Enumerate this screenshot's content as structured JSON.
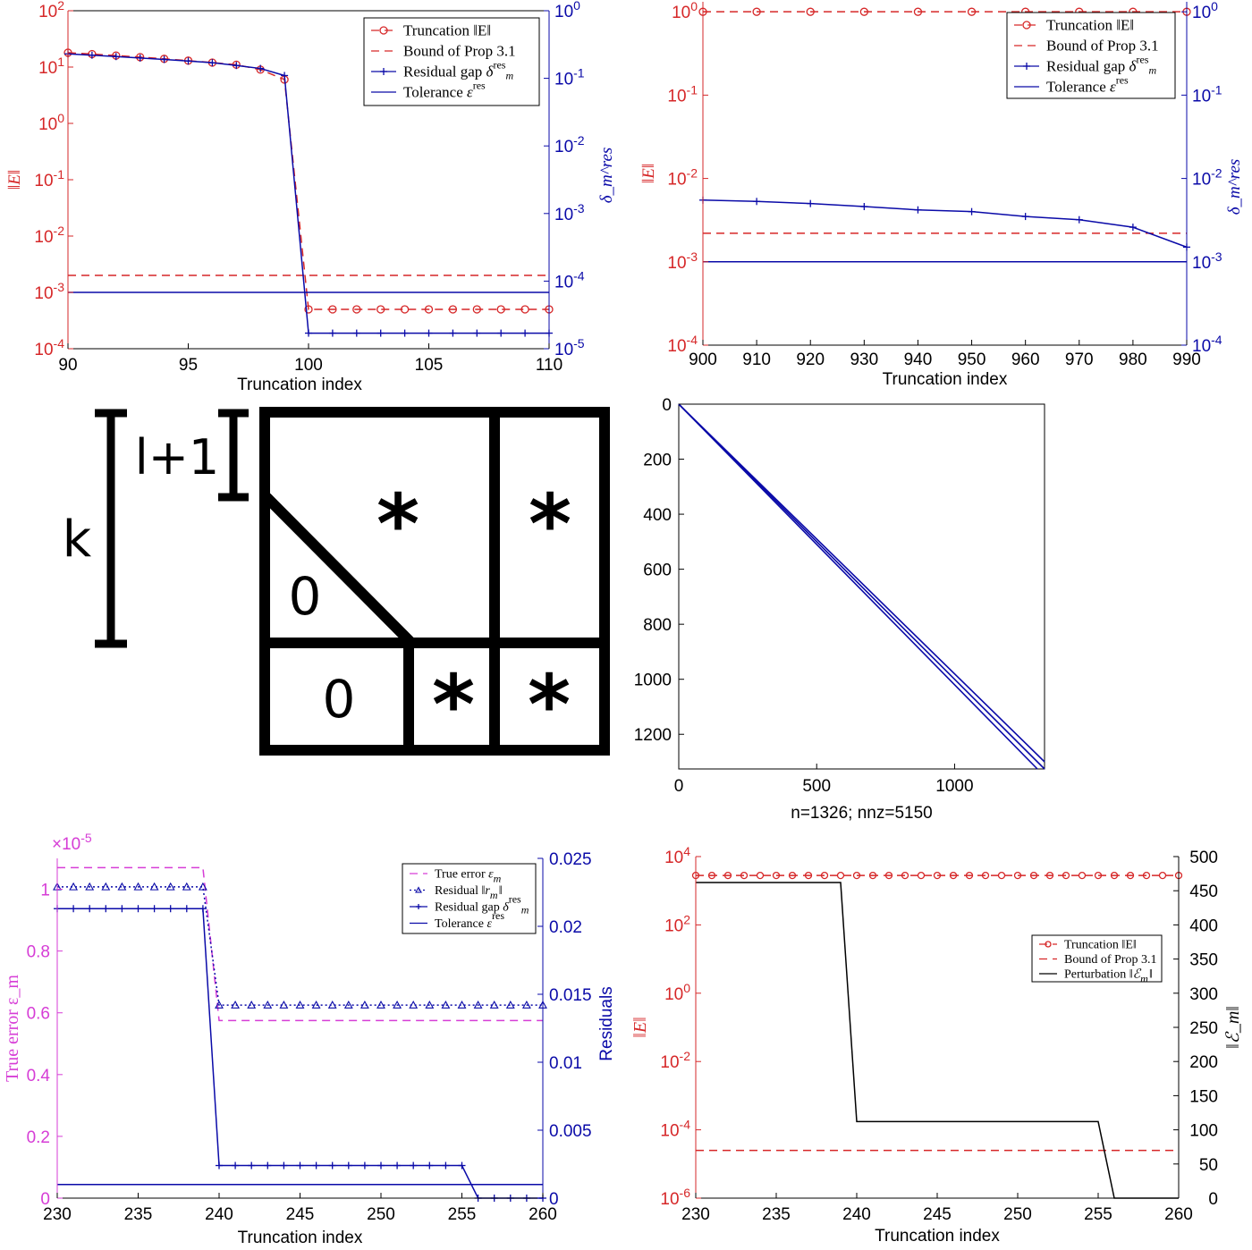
{
  "colors": {
    "red": "#d62728",
    "blue": "#0a0aa8",
    "magenta": "#d63dd6",
    "black": "#000000"
  },
  "chart_data": [
    {
      "id": "p1",
      "type": "line",
      "xlabel": "Truncation index",
      "ylabel_left": "‖E‖",
      "ylabel_right": "δ_m^res",
      "left_log": true,
      "right_log": true,
      "xlim": [
        90,
        110
      ],
      "ylim_left_exp": [
        -4,
        2
      ],
      "ylim_right_exp": [
        -5,
        0
      ],
      "xticks": [
        90,
        95,
        100,
        105,
        110
      ],
      "yticks_left_exp": [
        -4,
        -3,
        -2,
        -1,
        0,
        1,
        2
      ],
      "yticks_right_exp": [
        -5,
        -4,
        -3,
        -2,
        -1,
        0
      ],
      "legend": [
        "Truncation ‖E‖",
        "Bound of Prop 3.1",
        "Residual gap δ_m^res",
        "Tolerance ε^res"
      ],
      "legend_placement": "top-right",
      "series": [
        {
          "name": "Truncation ‖E‖",
          "axis": "left",
          "style": "red-circle-dashed",
          "x": [
            90,
            91,
            92,
            93,
            94,
            95,
            96,
            97,
            98,
            99,
            100,
            101,
            102,
            103,
            104,
            105,
            106,
            107,
            108,
            109,
            110
          ],
          "y": [
            18,
            17,
            16,
            15,
            14,
            13,
            12,
            11,
            9,
            6,
            0.0005,
            0.0005,
            0.0005,
            0.0005,
            0.0005,
            0.0005,
            0.0005,
            0.0005,
            0.0005,
            0.0005,
            0.0005
          ]
        },
        {
          "name": "Bound of Prop 3.1",
          "axis": "left",
          "style": "red-dashed",
          "x": [
            90,
            110
          ],
          "y": [
            0.002,
            0.002
          ]
        },
        {
          "name": "Residual gap δ_m^res",
          "axis": "right",
          "style": "blue-plus",
          "x": [
            90,
            91,
            92,
            93,
            94,
            95,
            96,
            97,
            98,
            99,
            100,
            101,
            102,
            103,
            104,
            105,
            106,
            107,
            108,
            109,
            110
          ],
          "y": [
            0.23,
            0.22,
            0.21,
            0.2,
            0.19,
            0.18,
            0.17,
            0.155,
            0.14,
            0.11,
            1.7e-05,
            1.7e-05,
            1.7e-05,
            1.7e-05,
            1.7e-05,
            1.7e-05,
            1.7e-05,
            1.7e-05,
            1.7e-05,
            1.7e-05,
            1.7e-05
          ]
        },
        {
          "name": "Tolerance ε^res",
          "axis": "left",
          "style": "blue-solid",
          "x": [
            90,
            110
          ],
          "y": [
            0.001,
            0.001
          ]
        }
      ]
    },
    {
      "id": "p2",
      "type": "line",
      "xlabel": "Truncation index",
      "ylabel_left": "‖E‖",
      "ylabel_right": "δ_m^res",
      "left_log": true,
      "right_log": true,
      "xlim": [
        900,
        990
      ],
      "ylim_left_exp": [
        -4,
        0.12
      ],
      "ylim_right_exp": [
        -4,
        0.12
      ],
      "xticks": [
        900,
        910,
        920,
        930,
        940,
        950,
        960,
        970,
        980,
        990
      ],
      "yticks_left_exp": [
        -4,
        -3,
        -2,
        -1,
        0
      ],
      "yticks_right_exp": [
        -4,
        -3,
        -2,
        -1,
        0
      ],
      "legend": [
        "Truncation ‖E‖",
        "Bound of Prop 3.1",
        "Residual gap δ_m^res",
        "Tolerance ε^res"
      ],
      "legend_placement": "top-right",
      "series": [
        {
          "name": "Truncation ‖E‖",
          "axis": "left",
          "style": "red-circle-dashed",
          "x": [
            900,
            910,
            920,
            930,
            940,
            950,
            960,
            970,
            980,
            990
          ],
          "y": [
            1,
            1,
            1,
            1,
            1,
            1,
            1,
            1,
            1,
            1
          ]
        },
        {
          "name": "Bound of Prop 3.1",
          "axis": "left",
          "style": "red-dashed",
          "x": [
            900,
            990
          ],
          "y": [
            0.0022,
            0.0022
          ]
        },
        {
          "name": "Residual gap δ_m^res",
          "axis": "left",
          "style": "blue-plus",
          "x": [
            900,
            910,
            920,
            930,
            940,
            950,
            960,
            970,
            980,
            990
          ],
          "y": [
            0.0055,
            0.0053,
            0.005,
            0.0046,
            0.0042,
            0.004,
            0.0035,
            0.0032,
            0.0026,
            0.0015
          ]
        },
        {
          "name": "Tolerance ε^res",
          "axis": "left",
          "style": "blue-solid",
          "x": [
            900,
            990
          ],
          "y": [
            0.001,
            0.001
          ]
        }
      ]
    },
    {
      "id": "p4",
      "type": "scatter",
      "title": "",
      "xlabel": "n=1326;  nnz=5150",
      "xlim": [
        0,
        1326
      ],
      "ylim": [
        0,
        1326
      ],
      "xticks": [
        0,
        500,
        1000
      ],
      "yticks": [
        0,
        200,
        400,
        600,
        800,
        1000,
        1200
      ],
      "pattern": "block-bidiagonal sparsity spy plot",
      "bands": [
        [
          0,
          1326,
          1326,
          1326
        ],
        [
          0,
          0,
          1326,
          1326
        ],
        [
          0,
          30,
          1326,
          1326
        ]
      ]
    },
    {
      "id": "p5",
      "type": "line",
      "xlabel": "Truncation index",
      "ylabel_left": "True error ε_m",
      "ylabel_right": "Residuals",
      "xlim": [
        230,
        260
      ],
      "ylim_left": [
        0,
        1.1
      ],
      "ylim_right": [
        0,
        0.025
      ],
      "xticks": [
        230,
        235,
        240,
        245,
        250,
        255,
        260
      ],
      "yticks_left": [
        0,
        0.2,
        0.4,
        0.6,
        0.8,
        1
      ],
      "ytick_labels_left": [
        "0",
        "0.2",
        "0.4",
        "0.6",
        "0.8",
        "1"
      ],
      "yticks_right": [
        0,
        0.005,
        0.01,
        0.015,
        0.02,
        0.025
      ],
      "ytick_labels_right": [
        "0",
        "0.005",
        "0.01",
        "0.015",
        "0.02",
        "0.025"
      ],
      "left_multiplier": "×10",
      "left_multiplier_exp": "-5",
      "legend": [
        "True error ε_m",
        "Residual ‖r_m‖",
        "Residual gap δ_m^res",
        "Tolerance ε^res"
      ],
      "legend_placement": "top-right",
      "series": [
        {
          "name": "True error ε_m",
          "axis": "left",
          "style": "magenta-dashed",
          "x": [
            230,
            239,
            240,
            260
          ],
          "y": [
            1.07,
            1.07,
            0.575,
            0.575
          ]
        },
        {
          "name": "Residual ‖r_m‖",
          "axis": "right",
          "style": "blue-triangle-dotted",
          "x": [
            230,
            231,
            232,
            233,
            234,
            235,
            236,
            237,
            238,
            239,
            240,
            241,
            242,
            243,
            244,
            245,
            246,
            247,
            248,
            249,
            250,
            251,
            252,
            253,
            254,
            255,
            256,
            257,
            258,
            259,
            260
          ],
          "y": [
            0.0229,
            0.0229,
            0.0229,
            0.0229,
            0.0229,
            0.0229,
            0.0229,
            0.0229,
            0.0229,
            0.0229,
            0.0142,
            0.0142,
            0.0142,
            0.0142,
            0.0142,
            0.0142,
            0.0142,
            0.0142,
            0.0142,
            0.0142,
            0.0142,
            0.0142,
            0.0142,
            0.0142,
            0.0142,
            0.0142,
            0.0142,
            0.0142,
            0.0142,
            0.0142,
            0.0142
          ]
        },
        {
          "name": "Residual gap δ_m^res",
          "axis": "right",
          "style": "blue-plus",
          "x": [
            230,
            231,
            232,
            233,
            234,
            235,
            236,
            237,
            238,
            239,
            240,
            241,
            242,
            243,
            244,
            245,
            246,
            247,
            248,
            249,
            250,
            251,
            252,
            253,
            254,
            255,
            256,
            257,
            258,
            259,
            260
          ],
          "y": [
            0.0213,
            0.0213,
            0.0213,
            0.0213,
            0.0213,
            0.0213,
            0.0213,
            0.0213,
            0.0213,
            0.0213,
            0.0024,
            0.0024,
            0.0024,
            0.0024,
            0.0024,
            0.0024,
            0.0024,
            0.0024,
            0.0024,
            0.0024,
            0.0024,
            0.0024,
            0.0024,
            0.0024,
            0.0024,
            0.0024,
            0,
            0,
            0,
            0,
            0
          ]
        },
        {
          "name": "Tolerance ε^res",
          "axis": "right",
          "style": "blue-solid",
          "x": [
            230,
            260
          ],
          "y": [
            0.001,
            0.001
          ]
        }
      ]
    },
    {
      "id": "p6",
      "type": "line",
      "xlabel": "Truncation index",
      "ylabel_left": "‖E‖",
      "ylabel_right": "‖ℰ_m‖",
      "left_log": true,
      "xlim": [
        230,
        260
      ],
      "ylim_left_exp": [
        -6,
        4
      ],
      "ylim_right": [
        0,
        500
      ],
      "xticks": [
        230,
        235,
        240,
        245,
        250,
        255,
        260
      ],
      "yticks_left_exp": [
        -6,
        -4,
        -2,
        0,
        2,
        4
      ],
      "yticks_right": [
        0,
        50,
        100,
        150,
        200,
        250,
        300,
        350,
        400,
        450,
        500
      ],
      "legend": [
        "Truncation ‖E‖",
        "Bound of Prop 3.1",
        "Perturbation ‖ℰ_m‖"
      ],
      "legend_placement": "center-right",
      "series": [
        {
          "name": "Truncation ‖E‖",
          "axis": "left",
          "style": "red-circle-dashed",
          "x": [
            230,
            231,
            232,
            233,
            234,
            235,
            236,
            237,
            238,
            239,
            240,
            241,
            242,
            243,
            244,
            245,
            246,
            247,
            248,
            249,
            250,
            251,
            252,
            253,
            254,
            255,
            256,
            257,
            258,
            259,
            260
          ],
          "y": [
            2800,
            2800,
            2800,
            2800,
            2800,
            2800,
            2800,
            2800,
            2800,
            2800,
            2800,
            2800,
            2800,
            2800,
            2800,
            2800,
            2800,
            2800,
            2800,
            2800,
            2800,
            2800,
            2800,
            2800,
            2800,
            2800,
            2800,
            2800,
            2800,
            2800,
            2800
          ]
        },
        {
          "name": "Bound of Prop 3.1",
          "axis": "left",
          "style": "red-dashed",
          "x": [
            230,
            260
          ],
          "y": [
            2.5e-05,
            2.5e-05
          ]
        },
        {
          "name": "Perturbation ‖ℰ_m‖",
          "axis": "right",
          "style": "black-solid",
          "x": [
            230,
            239,
            240,
            254,
            255,
            256,
            260
          ],
          "y": [
            462,
            462,
            112,
            112,
            112,
            0,
            0
          ]
        }
      ]
    }
  ],
  "diagram": {
    "left_dimension_label": "k",
    "inner_dimension_label": "l+1",
    "block_labels": [
      "*",
      "*",
      "0",
      "0",
      "*",
      "*"
    ]
  }
}
